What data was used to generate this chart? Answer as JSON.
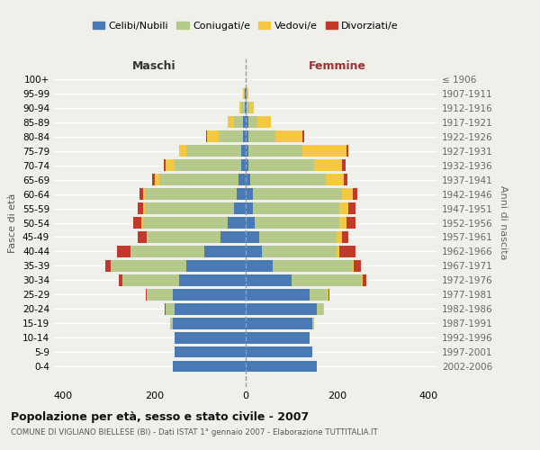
{
  "age_groups": [
    "0-4",
    "5-9",
    "10-14",
    "15-19",
    "20-24",
    "25-29",
    "30-34",
    "35-39",
    "40-44",
    "45-49",
    "50-54",
    "55-59",
    "60-64",
    "65-69",
    "70-74",
    "75-79",
    "80-84",
    "85-89",
    "90-94",
    "95-99",
    "100+"
  ],
  "birth_years": [
    "2002-2006",
    "1997-2001",
    "1992-1996",
    "1987-1991",
    "1982-1986",
    "1977-1981",
    "1972-1976",
    "1967-1971",
    "1962-1966",
    "1957-1961",
    "1952-1956",
    "1947-1951",
    "1942-1946",
    "1937-1941",
    "1932-1936",
    "1927-1931",
    "1922-1926",
    "1917-1921",
    "1912-1916",
    "1907-1911",
    "≤ 1906"
  ],
  "maschi": {
    "celibi": [
      160,
      155,
      155,
      160,
      155,
      160,
      145,
      130,
      90,
      55,
      40,
      25,
      20,
      15,
      10,
      10,
      5,
      5,
      2,
      1,
      0
    ],
    "coniugati": [
      0,
      0,
      0,
      5,
      20,
      55,
      125,
      165,
      160,
      160,
      185,
      195,
      200,
      175,
      145,
      120,
      55,
      20,
      8,
      3,
      0
    ],
    "vedovi": [
      0,
      0,
      0,
      0,
      1,
      2,
      1,
      1,
      2,
      2,
      3,
      5,
      5,
      10,
      20,
      15,
      25,
      15,
      4,
      1,
      0
    ],
    "divorziati": [
      0,
      0,
      0,
      0,
      1,
      2,
      8,
      12,
      30,
      20,
      18,
      12,
      8,
      5,
      5,
      0,
      2,
      0,
      0,
      0,
      0
    ]
  },
  "femmine": {
    "nubili": [
      155,
      145,
      140,
      145,
      155,
      140,
      100,
      60,
      35,
      30,
      20,
      15,
      15,
      10,
      5,
      5,
      5,
      5,
      2,
      1,
      0
    ],
    "coniugate": [
      0,
      0,
      0,
      5,
      15,
      40,
      155,
      175,
      165,
      170,
      185,
      190,
      195,
      165,
      145,
      120,
      60,
      20,
      5,
      1,
      0
    ],
    "vedove": [
      0,
      0,
      0,
      0,
      1,
      2,
      2,
      2,
      5,
      10,
      15,
      20,
      25,
      40,
      60,
      95,
      60,
      30,
      10,
      3,
      0
    ],
    "divorziate": [
      0,
      0,
      0,
      0,
      0,
      2,
      8,
      15,
      35,
      15,
      20,
      15,
      10,
      8,
      8,
      5,
      3,
      0,
      0,
      0,
      0
    ]
  },
  "colors": {
    "celibi": "#4a7ab5",
    "coniugati": "#b5c98a",
    "vedovi": "#f5c842",
    "divorziati": "#c0392b"
  },
  "xlim": 420,
  "title": "Popolazione per età, sesso e stato civile - 2007",
  "subtitle": "COMUNE DI VIGLIANO BIELLESE (BI) - Dati ISTAT 1° gennaio 2007 - Elaborazione TUTTITALIA.IT",
  "ylabel_left": "Fasce di età",
  "ylabel_right": "Anni di nascita",
  "xlabel_maschi": "Maschi",
  "xlabel_femmine": "Femmine",
  "bg_color": "#f0f0eb",
  "bar_height": 0.8
}
